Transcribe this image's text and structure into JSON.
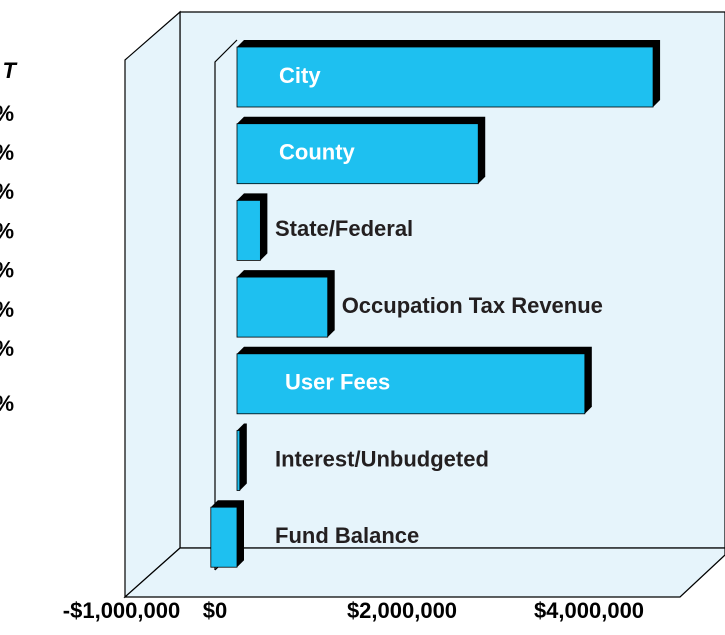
{
  "chart_data": {
    "type": "bar3d",
    "categories": [
      "City",
      "County",
      "State/Federal",
      "Occupation Tax Revenue",
      "User Fees",
      "Interest/Unbudgeted",
      "Fund Balance"
    ],
    "values": [
      4450000,
      2580000,
      250000,
      970000,
      3720000,
      30000,
      -280000
    ],
    "color": "#1ec0f0",
    "xlim": [
      -1000000,
      5400000
    ],
    "xticks": [
      {
        "value": -1000000,
        "label": "-$1,000,000"
      },
      {
        "value": 0,
        "label": "$0"
      },
      {
        "value": 2000000,
        "label": "$2,000,000"
      },
      {
        "value": 4000000,
        "label": "$4,000,000"
      }
    ]
  },
  "side_text": {
    "header": "T",
    "rows": [
      "%",
      "%",
      "%",
      "%",
      "%",
      "%",
      "%"
    ],
    "total": "%"
  }
}
